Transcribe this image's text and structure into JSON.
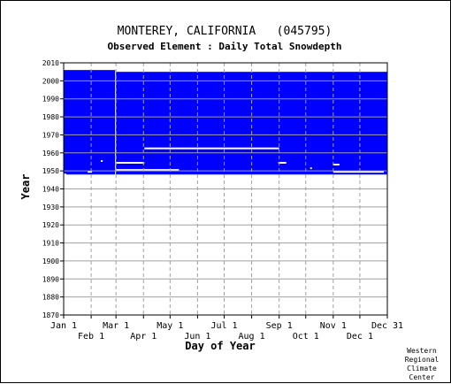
{
  "chart_data": {
    "type": "heatmap",
    "title": "MONTEREY, CALIFORNIA   (045795)",
    "subtitle": "Observed Element : Daily Total Snowdepth",
    "xlabel": "Day of Year",
    "ylabel": "Year",
    "xlim": [
      1,
      366
    ],
    "ylim": [
      1870,
      2010
    ],
    "y_ticks": [
      1870,
      1880,
      1890,
      1900,
      1910,
      1920,
      1930,
      1940,
      1950,
      1960,
      1970,
      1980,
      1990,
      2000,
      2010
    ],
    "x_ticks_top": [
      {
        "label": "Jan 1",
        "day": 1
      },
      {
        "label": "Mar 1",
        "day": 60
      },
      {
        "label": "May 1",
        "day": 121
      },
      {
        "label": "Jul 1",
        "day": 182
      },
      {
        "label": "Sep 1",
        "day": 244
      },
      {
        "label": "Nov 1",
        "day": 305
      },
      {
        "label": "Dec 31",
        "day": 366
      }
    ],
    "x_ticks_bottom": [
      {
        "label": "Feb 1",
        "day": 32
      },
      {
        "label": "Apr 1",
        "day": 91
      },
      {
        "label": "Jun 1",
        "day": 152
      },
      {
        "label": "Aug 1",
        "day": 213
      },
      {
        "label": "Oct 1",
        "day": 274
      },
      {
        "label": "Dec 1",
        "day": 335
      }
    ],
    "grid": true,
    "data_color": "#0000ff",
    "record_blocks": [
      {
        "day_start": 1,
        "day_end": 59,
        "year_start": 1948,
        "year_end": 2006
      },
      {
        "day_start": 60,
        "day_end": 366,
        "year_start": 1948,
        "year_end": 2005
      }
    ],
    "missing_gaps": [
      {
        "day_start": 1,
        "day_end": 4,
        "year": 1948
      },
      {
        "day_start": 28,
        "day_end": 33,
        "year": 1949.5
      },
      {
        "day_start": 43,
        "day_end": 45,
        "year": 1955.5
      },
      {
        "day_start": 60,
        "day_end": 92,
        "year": 1954.5
      },
      {
        "day_start": 60,
        "day_end": 131,
        "year": 1950.5
      },
      {
        "day_start": 92,
        "day_end": 244,
        "year": 1962.5
      },
      {
        "day_start": 243,
        "day_end": 252,
        "year": 1954.5
      },
      {
        "day_start": 279,
        "day_end": 281,
        "year": 1951.5
      },
      {
        "day_start": 305,
        "day_end": 312,
        "year": 1953.5
      },
      {
        "day_start": 305,
        "day_end": 362,
        "year": 1949.5
      }
    ]
  },
  "credit": [
    "Western",
    "Regional",
    "Climate",
    "Center"
  ]
}
